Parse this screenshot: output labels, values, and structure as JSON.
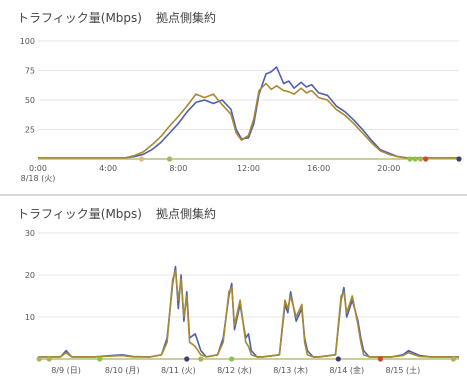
{
  "colors": {
    "series_blue": "#4d5fb0",
    "series_gold": "#a8892f",
    "baseline_olive": "#a8b35a",
    "grid": "#e6e6e6",
    "marker_olive": "#a8b35a",
    "marker_peach": "#e8b87a",
    "marker_green": "#8ac24a",
    "marker_red": "#d0453a",
    "marker_navy": "#3a3f7a"
  },
  "chart_data": [
    {
      "type": "line",
      "title": "トラフィック量(Mbps)",
      "subtitle": "拠点側集約",
      "ylim": [
        0,
        100
      ],
      "y_ticks": [
        "100",
        "75",
        "50",
        "25"
      ],
      "y_tick_values": [
        100,
        75,
        50,
        25
      ],
      "xlim": [
        0,
        24
      ],
      "x_ticks": [
        "0:00",
        "4:00",
        "8:00",
        "12:00",
        "16:00",
        "20:00"
      ],
      "x_tick_values": [
        0,
        4,
        8,
        12,
        16,
        20
      ],
      "x_date_label": "8/18 (火)",
      "grid": true,
      "series": [
        {
          "x": [
            0,
            3,
            5,
            5.5,
            6,
            6.5,
            7,
            7.5,
            8,
            8.5,
            9,
            9.5,
            10,
            10.5,
            11,
            11.3,
            11.6,
            12,
            12.3,
            12.6,
            13,
            13.3,
            13.6,
            14,
            14.3,
            14.6,
            15,
            15.3,
            15.6,
            16,
            16.5,
            17,
            17.5,
            18,
            18.5,
            19,
            19.5,
            20,
            20.5,
            21,
            22,
            24
          ],
          "y": [
            1,
            1,
            1,
            2,
            4,
            8,
            14,
            22,
            30,
            40,
            48,
            50,
            47,
            50,
            42,
            25,
            17,
            18,
            30,
            55,
            72,
            74,
            78,
            64,
            66,
            60,
            65,
            61,
            63,
            56,
            54,
            45,
            40,
            33,
            25,
            16,
            8,
            5,
            2,
            1,
            1,
            1
          ]
        },
        {
          "x": [
            0,
            3,
            5,
            5.5,
            6,
            6.5,
            7,
            7.5,
            8,
            8.5,
            9,
            9.5,
            10,
            10.5,
            11,
            11.3,
            11.6,
            12,
            12.3,
            12.6,
            13,
            13.3,
            13.6,
            14,
            14.3,
            14.6,
            15,
            15.3,
            15.6,
            16,
            16.5,
            17,
            17.5,
            18,
            18.5,
            19,
            19.5,
            20,
            20.5,
            21,
            22,
            24
          ],
          "y": [
            1,
            1,
            1,
            3,
            6,
            12,
            19,
            28,
            36,
            45,
            55,
            52,
            55,
            46,
            38,
            22,
            16,
            20,
            34,
            58,
            64,
            59,
            62,
            58,
            57,
            55,
            60,
            56,
            58,
            52,
            50,
            42,
            37,
            30,
            22,
            14,
            7,
            4,
            2,
            1,
            1,
            1
          ]
        }
      ],
      "markers": [
        {
          "x": 5.9,
          "color": "marker_peach"
        },
        {
          "x": 7.5,
          "color": "marker_olive"
        },
        {
          "x": 21.2,
          "color": "marker_green"
        },
        {
          "x": 21.5,
          "color": "marker_green"
        },
        {
          "x": 21.8,
          "color": "marker_olive"
        },
        {
          "x": 22.1,
          "color": "marker_red"
        },
        {
          "x": 24.0,
          "color": "marker_navy"
        }
      ]
    },
    {
      "type": "line",
      "title": "トラフィック量(Mbps)",
      "subtitle": "拠点側集約",
      "ylim": [
        0,
        30
      ],
      "y_ticks": [
        "30",
        "20",
        "10"
      ],
      "y_tick_values": [
        30,
        20,
        10
      ],
      "xlim": [
        0,
        7.5
      ],
      "x_ticks": [
        "8/9 (日)",
        "8/10 (月)",
        "8/11 (火)",
        "8/12 (水)",
        "8/13 (木)",
        "8/14 (金)",
        "8/15 (土)"
      ],
      "x_tick_values": [
        0.5,
        1.5,
        2.5,
        3.5,
        4.5,
        5.5,
        6.5
      ],
      "grid": true,
      "series": [
        {
          "x": [
            0,
            0.4,
            0.5,
            0.6,
            1.0,
            1.3,
            1.5,
            1.7,
            2.0,
            2.2,
            2.3,
            2.4,
            2.45,
            2.5,
            2.55,
            2.6,
            2.65,
            2.7,
            2.8,
            2.9,
            3.0,
            3.2,
            3.3,
            3.4,
            3.45,
            3.5,
            3.6,
            3.7,
            3.75,
            3.8,
            3.9,
            4.0,
            4.3,
            4.4,
            4.45,
            4.5,
            4.6,
            4.7,
            4.75,
            4.8,
            4.9,
            5.0,
            5.3,
            5.4,
            5.45,
            5.5,
            5.6,
            5.7,
            5.75,
            5.8,
            5.9,
            6.0,
            6.3,
            6.5,
            6.6,
            6.8,
            7.0,
            7.5
          ],
          "y": [
            0.5,
            0.5,
            2,
            0.5,
            0.5,
            0.8,
            1,
            0.6,
            0.5,
            1,
            5,
            18,
            22,
            12,
            20,
            9,
            16,
            5,
            6,
            2,
            0.5,
            1,
            5,
            15,
            18,
            7,
            13,
            5,
            6,
            2,
            0.5,
            0.5,
            1,
            13,
            11,
            16,
            9,
            12,
            5,
            2,
            0.5,
            0.5,
            1,
            14,
            17,
            10,
            14,
            9,
            5,
            2,
            0.5,
            0.5,
            0.5,
            1,
            2,
            0.8,
            0.5,
            0.5
          ]
        },
        {
          "x": [
            0,
            0.4,
            0.5,
            0.6,
            1.0,
            1.3,
            1.5,
            1.7,
            2.0,
            2.2,
            2.3,
            2.4,
            2.45,
            2.5,
            2.55,
            2.6,
            2.65,
            2.7,
            2.8,
            2.9,
            3.0,
            3.2,
            3.3,
            3.4,
            3.45,
            3.5,
            3.6,
            3.7,
            3.75,
            3.8,
            3.9,
            4.0,
            4.3,
            4.4,
            4.45,
            4.5,
            4.6,
            4.7,
            4.75,
            4.8,
            4.9,
            5.0,
            5.3,
            5.4,
            5.45,
            5.5,
            5.6,
            5.7,
            5.75,
            5.8,
            5.9,
            6.0,
            6.3,
            6.5,
            6.6,
            6.8,
            7.0,
            7.5
          ],
          "y": [
            0.5,
            0.5,
            1.5,
            0.5,
            0.5,
            0.7,
            0.8,
            0.5,
            0.5,
            1,
            4,
            19,
            21,
            14,
            19,
            10,
            15,
            4,
            3,
            1,
            0.5,
            1,
            4,
            16,
            17,
            8,
            14,
            4,
            3,
            1,
            0.5,
            0.5,
            1,
            14,
            12,
            15,
            10,
            13,
            4,
            1,
            0.5,
            0.5,
            1,
            15,
            16,
            11,
            15,
            8,
            4,
            1,
            0.5,
            0.5,
            0.5,
            0.8,
            1.5,
            0.6,
            0.5,
            0.5
          ]
        }
      ],
      "markers": [
        {
          "x": 0.02,
          "color": "marker_olive"
        },
        {
          "x": 0.2,
          "color": "marker_olive"
        },
        {
          "x": 1.1,
          "color": "marker_green"
        },
        {
          "x": 2.65,
          "color": "marker_navy"
        },
        {
          "x": 2.9,
          "color": "marker_olive"
        },
        {
          "x": 3.45,
          "color": "marker_green"
        },
        {
          "x": 5.35,
          "color": "marker_navy"
        },
        {
          "x": 6.1,
          "color": "marker_red"
        },
        {
          "x": 7.4,
          "color": "marker_olive"
        }
      ]
    }
  ]
}
